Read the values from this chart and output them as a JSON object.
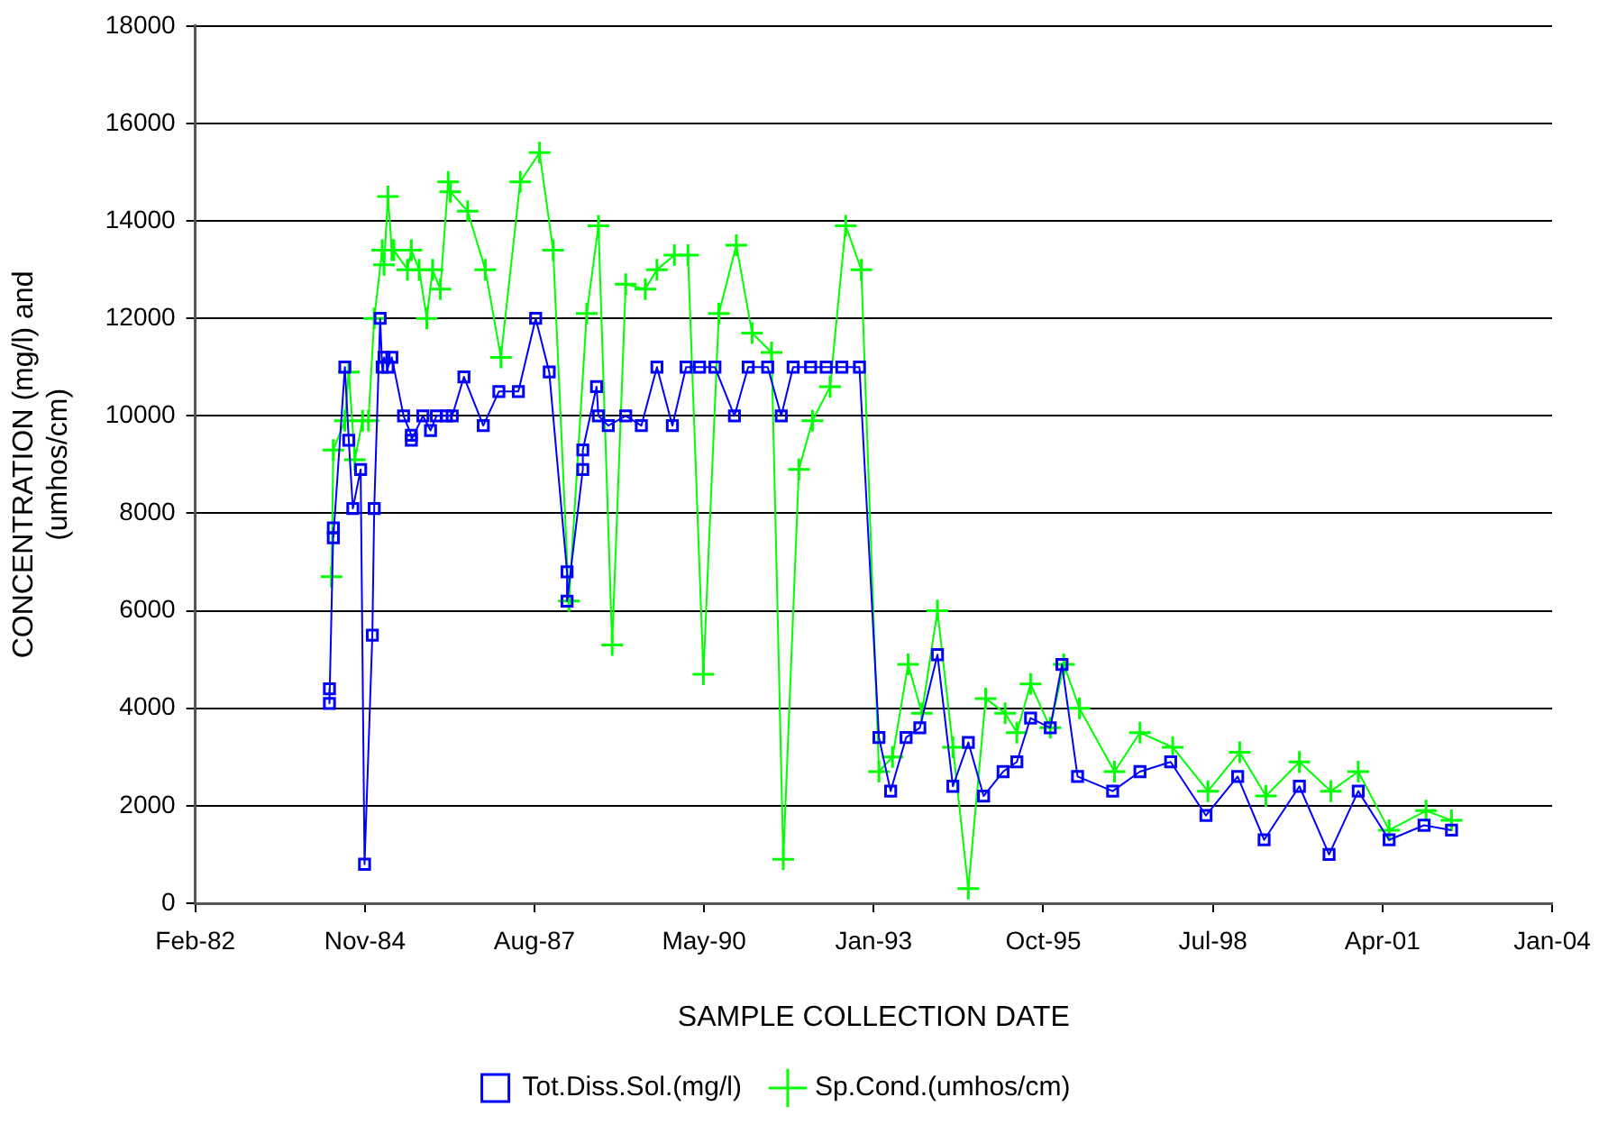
{
  "chart_data": {
    "type": "line",
    "xlabel": "SAMPLE COLLECTION DATE",
    "ylabel": "CONCENTRATION (mg/l) and (umhos/cm)",
    "xlim": [
      "1982-02-18",
      "2004-01-14"
    ],
    "xticks": [
      {
        "value": "1982-02-18",
        "label": "Feb-82"
      },
      {
        "value": "1984-11-14",
        "label": "Nov-84"
      },
      {
        "value": "1987-08-11",
        "label": "Aug-87"
      },
      {
        "value": "1990-05-07",
        "label": "May-90"
      },
      {
        "value": "1993-01-31",
        "label": "Jan-93"
      },
      {
        "value": "1995-10-28",
        "label": "Oct-95"
      },
      {
        "value": "1998-07-24",
        "label": "Jul-98"
      },
      {
        "value": "2001-04-19",
        "label": "Apr-01"
      },
      {
        "value": "2004-01-14",
        "label": "Jan-04"
      }
    ],
    "ylim": [
      0,
      18000
    ],
    "yticks": [
      0,
      2000,
      4000,
      6000,
      8000,
      10000,
      12000,
      14000,
      16000,
      18000
    ],
    "grid": "y",
    "legend": "bottom",
    "series": [
      {
        "name": "Tot.Diss.Sol.(mg/l)",
        "color": "#0000ff",
        "marker": "square",
        "x": [
          "1984-04-19",
          "1984-04-19",
          "1984-05-12",
          "1984-05-12",
          "1984-07-19",
          "1984-08-11",
          "1984-09-04",
          "1984-10-20",
          "1984-11-12",
          "1984-12-28",
          "1985-01-08",
          "1985-02-12",
          "1985-02-24",
          "1985-03-07",
          "1985-03-30",
          "1985-04-22",
          "1985-06-30",
          "1985-08-15",
          "1985-08-15",
          "1985-10-22",
          "1985-12-06",
          "1986-01-10",
          "1986-03-09",
          "1986-04-13",
          "1986-06-21",
          "1986-10-13",
          "1987-01-13",
          "1987-05-08",
          "1987-08-18",
          "1987-11-06",
          "1988-02-19",
          "1988-02-19",
          "1988-05-22",
          "1988-05-22",
          "1988-08-11",
          "1988-08-22",
          "1988-10-19",
          "1989-01-30",
          "1989-05-02",
          "1989-08-02",
          "1989-11-01",
          "1990-01-21",
          "1990-04-10",
          "1990-07-10",
          "1990-11-02",
          "1991-01-22",
          "1991-05-17",
          "1991-08-05",
          "1991-10-14",
          "1992-01-25",
          "1992-04-26",
          "1992-07-27",
          "1992-11-08",
          "1993-03-03",
          "1993-05-11",
          "1993-08-10",
          "1993-10-30",
          "1994-02-11",
          "1994-05-13",
          "1994-08-12",
          "1994-11-10",
          "1995-03-05",
          "1995-05-25",
          "1995-08-14",
          "1995-12-08",
          "1996-02-15",
          "1996-05-17",
          "1996-12-10",
          "1997-05-20",
          "1997-11-17",
          "1998-06-13",
          "1998-12-17",
          "1999-05-22",
          "1999-12-16",
          "2000-06-08",
          "2000-11-27",
          "2001-05-28",
          "2001-12-20",
          "2002-05-31"
        ],
        "values": [
          4400,
          4100,
          7700,
          7500,
          11000,
          9500,
          8100,
          8900,
          800,
          5500,
          8100,
          12000,
          11000,
          11200,
          11000,
          11200,
          10000,
          9600,
          9500,
          10000,
          9700,
          10000,
          10000,
          10000,
          10800,
          9800,
          10500,
          10500,
          12000,
          10900,
          6800,
          6200,
          8900,
          9300,
          10600,
          10000,
          9800,
          10000,
          9800,
          11000,
          9800,
          11000,
          11000,
          11000,
          10000,
          11000,
          11000,
          10000,
          11000,
          11000,
          11000,
          11000,
          11000,
          3400,
          2300,
          3400,
          3600,
          5100,
          2400,
          3300,
          2200,
          2700,
          2900,
          3800,
          3600,
          4900,
          2600,
          2300,
          2700,
          2900,
          1800,
          2600,
          1300,
          2400,
          1000,
          2300,
          1300,
          1600,
          1500
        ]
      },
      {
        "name": "Sp.Cond.(umhos/cm)",
        "color": "#00ff00",
        "marker": "cross",
        "x": [
          "1984-05-01",
          "1984-05-12",
          "1984-07-19",
          "1984-08-11",
          "1984-09-16",
          "1984-10-31",
          "1984-12-05",
          "1985-01-08",
          "1985-02-24",
          "1985-03-07",
          "1985-03-30",
          "1985-04-22",
          "1985-05-04",
          "1985-07-23",
          "1985-08-15",
          "1985-09-30",
          "1985-11-14",
          "1985-12-18",
          "1986-02-02",
          "1986-03-20",
          "1986-04-01",
          "1986-07-13",
          "1986-10-25",
          "1987-01-25",
          "1987-05-19",
          "1987-09-10",
          "1987-11-29",
          "1988-03-01",
          "1988-06-14",
          "1988-08-22",
          "1988-11-11",
          "1989-01-30",
          "1989-05-25",
          "1989-08-02",
          "1989-11-13",
          "1990-02-01",
          "1990-05-03",
          "1990-08-02",
          "1990-11-13",
          "1991-02-14",
          "1991-06-09",
          "1991-08-17",
          "1991-11-17",
          "1992-02-05",
          "1992-05-19",
          "1992-08-19",
          "1992-11-19",
          "1993-03-03",
          "1993-05-22",
          "1993-08-22",
          "1993-11-11",
          "1994-02-11",
          "1994-05-13",
          "1994-08-12",
          "1994-11-22",
          "1995-03-17",
          "1995-05-25",
          "1995-08-14",
          "1995-12-08",
          "1996-02-26",
          "1996-05-28",
          "1996-12-21",
          "1997-05-20",
          "1997-11-29",
          "1998-06-25",
          "1998-12-29",
          "1999-06-02",
          "1999-12-16",
          "2000-06-19",
          "2000-11-27",
          "2001-05-28",
          "2002-01-01",
          "2002-05-31"
        ],
        "values": [
          6700,
          9300,
          9900,
          10900,
          9100,
          9900,
          9900,
          12000,
          13400,
          13100,
          14500,
          13400,
          13400,
          13000,
          13400,
          13000,
          12000,
          13000,
          12600,
          14800,
          14600,
          14200,
          13000,
          11200,
          14800,
          15400,
          13400,
          6200,
          12100,
          13900,
          5300,
          12700,
          12600,
          13000,
          13300,
          13300,
          4700,
          12100,
          13500,
          11700,
          11300,
          900,
          8900,
          9900,
          10600,
          13900,
          13000,
          2700,
          3000,
          4900,
          3900,
          6000,
          3200,
          300,
          4200,
          3900,
          3500,
          4500,
          3600,
          4900,
          4000,
          2700,
          3500,
          3200,
          2300,
          3100,
          2200,
          2900,
          2300,
          2700,
          1500,
          1900,
          1700
        ]
      }
    ]
  }
}
